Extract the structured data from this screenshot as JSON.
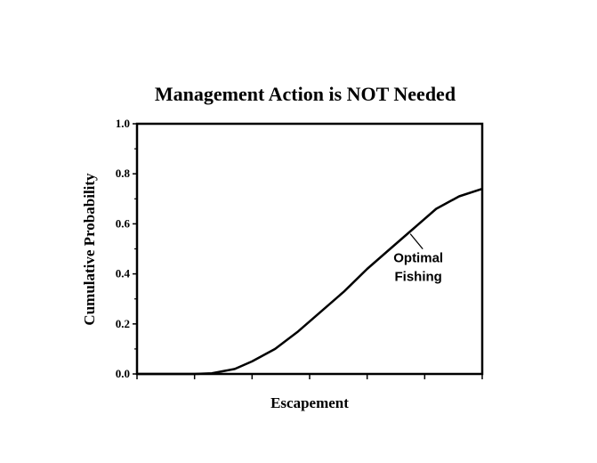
{
  "chart_data": {
    "type": "line",
    "title": "Management Action is NOT Needed",
    "xlabel": "Escapement",
    "ylabel": "Cumulative Probability",
    "ylim": [
      0,
      1.0
    ],
    "xlim": [
      0,
      6
    ],
    "y_ticks": [
      "0.0",
      "0.2",
      "0.4",
      "0.6",
      "0.8",
      "1.0"
    ],
    "x_tick_labels": [],
    "grid": false,
    "series": [
      {
        "name": "Optimal Fishing",
        "x": [
          0,
          0.5,
          1.0,
          1.3,
          1.7,
          2.0,
          2.4,
          2.8,
          3.2,
          3.6,
          4.0,
          4.4,
          4.8,
          5.2,
          5.6,
          6.0
        ],
        "y": [
          0.0,
          0.0,
          0.0,
          0.003,
          0.02,
          0.05,
          0.1,
          0.17,
          0.25,
          0.33,
          0.42,
          0.5,
          0.58,
          0.66,
          0.71,
          0.74
        ]
      }
    ],
    "annotations": [
      {
        "text_line1": "Optimal",
        "text_line2": "Fishing",
        "points_to_x": 4.75,
        "points_to_y": 0.56
      }
    ]
  }
}
